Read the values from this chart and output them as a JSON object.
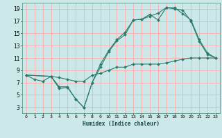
{
  "bg_color": "#cce8e8",
  "grid_color": "#ffaaaa",
  "line_color": "#2a7a6a",
  "xlim": [
    -0.5,
    23.5
  ],
  "ylim": [
    2,
    20
  ],
  "xtick_labels": [
    "0",
    "1",
    "2",
    "3",
    "4",
    "5",
    "6",
    "7",
    "8",
    "9",
    "10",
    "11",
    "12",
    "13",
    "14",
    "15",
    "16",
    "17",
    "18",
    "19",
    "20",
    "21",
    "22",
    "23"
  ],
  "yticks": [
    3,
    5,
    7,
    9,
    11,
    13,
    15,
    17,
    19
  ],
  "xlabel": "Humidex (Indice chaleur)",
  "line1_x": [
    0,
    1,
    2,
    3,
    4,
    5,
    6,
    7,
    8,
    9,
    10,
    11,
    12,
    13,
    14,
    15,
    16,
    17,
    18,
    19,
    20,
    21,
    22,
    23
  ],
  "line1_y": [
    8.2,
    7.5,
    7.2,
    8.0,
    7.8,
    7.5,
    7.2,
    7.2,
    8.2,
    8.5,
    9.0,
    9.5,
    9.5,
    10.0,
    10.0,
    10.0,
    10.0,
    10.2,
    10.5,
    10.8,
    11.0,
    11.0,
    11.0,
    11.0
  ],
  "line2_x": [
    0,
    3,
    4,
    5,
    6,
    7,
    8,
    9,
    10,
    11,
    12,
    13,
    14,
    15,
    16,
    17,
    18,
    19,
    20,
    21,
    22,
    23
  ],
  "line2_y": [
    8.2,
    8.0,
    6.0,
    6.2,
    4.3,
    2.9,
    7.0,
    10.0,
    12.2,
    14.0,
    15.2,
    17.2,
    17.3,
    18.1,
    17.2,
    19.2,
    19.2,
    18.2,
    17.2,
    14.0,
    11.8,
    11.0
  ],
  "line3_x": [
    0,
    3,
    4,
    5,
    6,
    7,
    8,
    9,
    10,
    11,
    12,
    13,
    14,
    15,
    16,
    17,
    18,
    19,
    20,
    21,
    22,
    23
  ],
  "line3_y": [
    8.2,
    8.0,
    6.3,
    6.3,
    4.3,
    2.9,
    7.0,
    9.5,
    12.0,
    13.8,
    14.8,
    17.2,
    17.3,
    17.8,
    18.3,
    19.2,
    19.0,
    18.8,
    17.0,
    13.7,
    11.6,
    11.0
  ]
}
